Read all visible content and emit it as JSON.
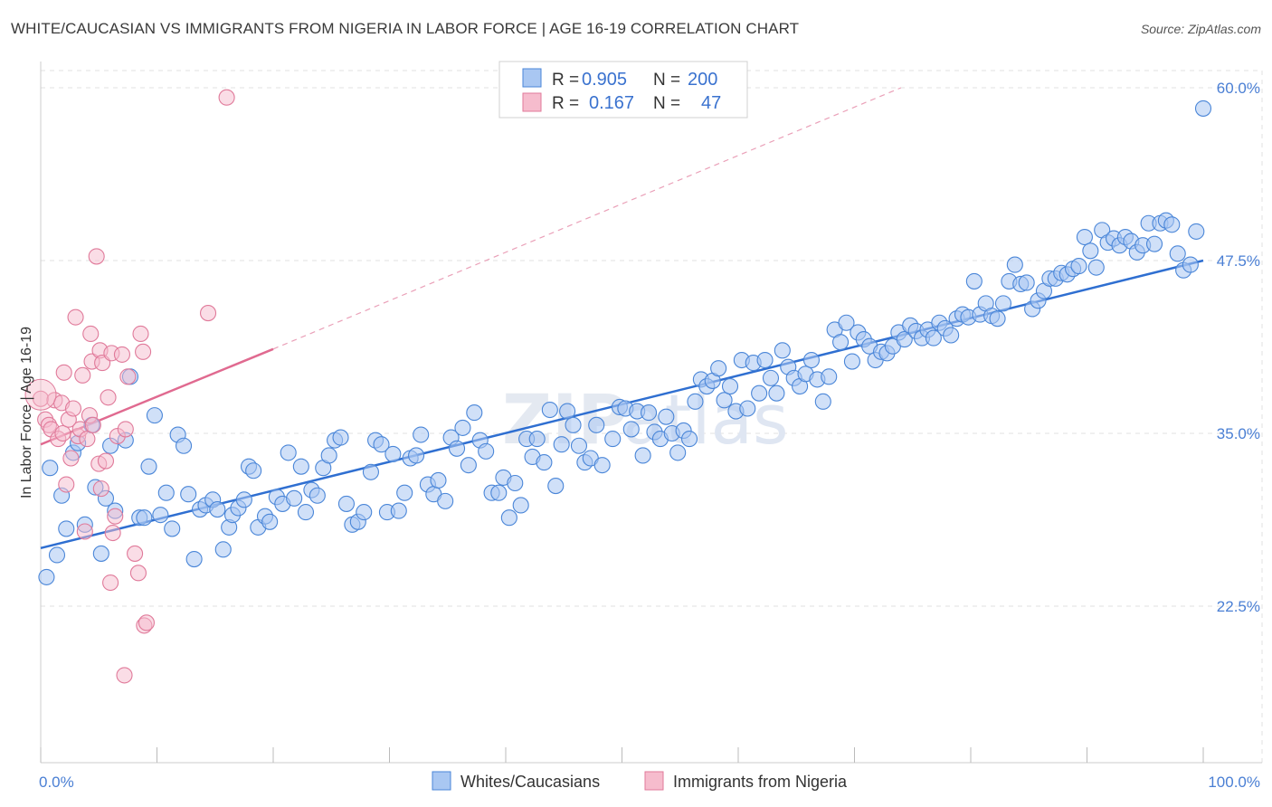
{
  "title": "WHITE/CAUCASIAN VS IMMIGRANTS FROM NIGERIA IN LABOR FORCE | AGE 16-19 CORRELATION CHART",
  "source": "Source: ZipAtlas.com",
  "watermark": {
    "zip": "ZIP",
    "atlas": "atlas"
  },
  "chart_data": {
    "type": "scatter",
    "title": "WHITE/CAUCASIAN VS IMMIGRANTS FROM NIGERIA IN LABOR FORCE | AGE 16-19 CORRELATION CHART",
    "xlabel": "",
    "ylabel": "In Labor Force | Age 16-19",
    "xlim": [
      0,
      100
    ],
    "ylim": [
      10,
      62
    ],
    "x_tick_labels": [
      "0.0%",
      "100.0%"
    ],
    "y_ticks": [
      22.5,
      35.0,
      47.5,
      60.0
    ],
    "y_tick_labels": [
      "22.5%",
      "35.0%",
      "47.5%",
      "60.0%"
    ],
    "grid": true,
    "legend_position": "top-center",
    "legend": [
      {
        "name": "Whites/Caucasians",
        "r_label": "R =",
        "r": "0.905",
        "n_label": "N =",
        "n": "200",
        "color": "#a9c7f2",
        "stroke": "#4a86d8"
      },
      {
        "name": "Immigrants from Nigeria",
        "r_label": "R =",
        "r": "0.167",
        "n_label": "N =",
        "n": "47",
        "color": "#f6bccd",
        "stroke": "#e07a9a"
      }
    ],
    "series": [
      {
        "name": "Whites/Caucasians",
        "color": "#a9c7f2",
        "stroke": "#4a86d8",
        "trend": {
          "x": [
            0,
            100
          ],
          "y": [
            26.7,
            47.5
          ],
          "color": "#2f6fd1"
        },
        "points": [
          [
            0.5,
            24.6
          ],
          [
            0.8,
            32.5
          ],
          [
            1.4,
            26.2
          ],
          [
            1.8,
            30.5
          ],
          [
            2.2,
            28.1
          ],
          [
            2.8,
            33.6
          ],
          [
            3.2,
            34.3
          ],
          [
            3.8,
            28.4
          ],
          [
            4.4,
            35.6
          ],
          [
            4.7,
            31.1
          ],
          [
            5.2,
            26.3
          ],
          [
            5.6,
            30.3
          ],
          [
            6.0,
            34.1
          ],
          [
            6.4,
            29.4
          ],
          [
            7.3,
            34.5
          ],
          [
            7.7,
            39.1
          ],
          [
            8.5,
            28.9
          ],
          [
            8.9,
            28.9
          ],
          [
            9.3,
            32.6
          ],
          [
            9.8,
            36.3
          ],
          [
            10.3,
            29.1
          ],
          [
            10.8,
            30.7
          ],
          [
            11.3,
            28.1
          ],
          [
            11.8,
            34.9
          ],
          [
            12.3,
            34.1
          ],
          [
            12.7,
            30.6
          ],
          [
            13.2,
            25.9
          ],
          [
            13.7,
            29.5
          ],
          [
            14.2,
            29.8
          ],
          [
            14.8,
            30.2
          ],
          [
            15.2,
            29.5
          ],
          [
            15.7,
            26.6
          ],
          [
            16.2,
            28.2
          ],
          [
            16.5,
            29.1
          ],
          [
            17.0,
            29.6
          ],
          [
            17.5,
            30.2
          ],
          [
            17.9,
            32.6
          ],
          [
            18.3,
            32.3
          ],
          [
            18.7,
            28.2
          ],
          [
            19.3,
            29.0
          ],
          [
            19.7,
            28.6
          ],
          [
            20.3,
            30.4
          ],
          [
            20.8,
            29.9
          ],
          [
            21.3,
            33.6
          ],
          [
            21.8,
            30.3
          ],
          [
            22.4,
            32.6
          ],
          [
            22.8,
            29.3
          ],
          [
            23.3,
            30.9
          ],
          [
            23.8,
            30.5
          ],
          [
            24.3,
            32.5
          ],
          [
            24.8,
            33.4
          ],
          [
            25.3,
            34.5
          ],
          [
            25.8,
            34.7
          ],
          [
            26.3,
            29.9
          ],
          [
            26.8,
            28.4
          ],
          [
            27.3,
            28.6
          ],
          [
            27.8,
            29.3
          ],
          [
            28.4,
            32.2
          ],
          [
            28.8,
            34.5
          ],
          [
            29.3,
            34.2
          ],
          [
            29.8,
            29.3
          ],
          [
            30.3,
            33.5
          ],
          [
            30.8,
            29.4
          ],
          [
            31.3,
            30.7
          ],
          [
            31.8,
            33.2
          ],
          [
            32.3,
            33.4
          ],
          [
            32.7,
            34.9
          ],
          [
            33.3,
            31.3
          ],
          [
            33.8,
            30.6
          ],
          [
            34.2,
            31.6
          ],
          [
            34.8,
            30.1
          ],
          [
            35.3,
            34.7
          ],
          [
            35.8,
            33.9
          ],
          [
            36.3,
            35.4
          ],
          [
            36.8,
            32.7
          ],
          [
            37.3,
            36.5
          ],
          [
            37.8,
            34.5
          ],
          [
            38.3,
            33.7
          ],
          [
            38.8,
            30.7
          ],
          [
            39.4,
            30.7
          ],
          [
            39.8,
            31.8
          ],
          [
            40.3,
            28.9
          ],
          [
            40.8,
            31.4
          ],
          [
            41.3,
            29.8
          ],
          [
            41.8,
            34.6
          ],
          [
            42.3,
            33.3
          ],
          [
            42.7,
            34.6
          ],
          [
            43.3,
            32.9
          ],
          [
            43.8,
            36.7
          ],
          [
            44.3,
            31.2
          ],
          [
            44.8,
            34.2
          ],
          [
            45.3,
            36.6
          ],
          [
            45.8,
            35.6
          ],
          [
            46.3,
            34.1
          ],
          [
            46.8,
            32.9
          ],
          [
            47.3,
            33.2
          ],
          [
            47.8,
            35.6
          ],
          [
            48.3,
            32.7
          ],
          [
            49.2,
            34.6
          ],
          [
            49.8,
            36.9
          ],
          [
            50.3,
            36.8
          ],
          [
            50.8,
            35.3
          ],
          [
            51.3,
            36.6
          ],
          [
            51.8,
            33.4
          ],
          [
            52.3,
            36.5
          ],
          [
            52.8,
            35.1
          ],
          [
            53.3,
            34.6
          ],
          [
            53.8,
            36.2
          ],
          [
            54.3,
            35.0
          ],
          [
            54.8,
            33.6
          ],
          [
            55.3,
            35.2
          ],
          [
            55.8,
            34.6
          ],
          [
            56.3,
            37.3
          ],
          [
            56.8,
            38.9
          ],
          [
            57.3,
            38.4
          ],
          [
            57.8,
            38.8
          ],
          [
            58.3,
            39.7
          ],
          [
            58.8,
            37.4
          ],
          [
            59.3,
            38.4
          ],
          [
            59.8,
            36.6
          ],
          [
            60.3,
            40.3
          ],
          [
            60.8,
            36.8
          ],
          [
            61.3,
            40.1
          ],
          [
            61.8,
            37.9
          ],
          [
            62.3,
            40.3
          ],
          [
            62.8,
            39.0
          ],
          [
            63.3,
            37.9
          ],
          [
            63.8,
            41.0
          ],
          [
            64.3,
            39.8
          ],
          [
            64.8,
            39.0
          ],
          [
            65.3,
            38.4
          ],
          [
            65.8,
            39.3
          ],
          [
            66.3,
            40.3
          ],
          [
            66.8,
            38.9
          ],
          [
            67.3,
            37.3
          ],
          [
            67.8,
            39.1
          ],
          [
            68.3,
            42.5
          ],
          [
            68.8,
            41.6
          ],
          [
            69.3,
            43.0
          ],
          [
            69.8,
            40.2
          ],
          [
            70.3,
            42.3
          ],
          [
            70.8,
            41.8
          ],
          [
            71.3,
            41.3
          ],
          [
            71.8,
            40.3
          ],
          [
            72.3,
            40.9
          ],
          [
            72.8,
            40.8
          ],
          [
            73.3,
            41.3
          ],
          [
            73.8,
            42.3
          ],
          [
            74.3,
            41.8
          ],
          [
            74.8,
            42.8
          ],
          [
            75.3,
            42.4
          ],
          [
            75.8,
            41.9
          ],
          [
            76.3,
            42.5
          ],
          [
            76.8,
            41.9
          ],
          [
            77.3,
            43.0
          ],
          [
            77.8,
            42.6
          ],
          [
            78.3,
            42.1
          ],
          [
            78.8,
            43.3
          ],
          [
            79.3,
            43.6
          ],
          [
            79.8,
            43.4
          ],
          [
            80.3,
            46.0
          ],
          [
            80.8,
            43.6
          ],
          [
            81.3,
            44.4
          ],
          [
            81.8,
            43.5
          ],
          [
            82.3,
            43.3
          ],
          [
            82.8,
            44.4
          ],
          [
            83.3,
            46.0
          ],
          [
            83.8,
            47.2
          ],
          [
            84.3,
            45.8
          ],
          [
            84.8,
            45.9
          ],
          [
            85.3,
            44.0
          ],
          [
            85.8,
            44.6
          ],
          [
            86.3,
            45.3
          ],
          [
            86.8,
            46.2
          ],
          [
            87.3,
            46.2
          ],
          [
            87.8,
            46.6
          ],
          [
            88.3,
            46.5
          ],
          [
            88.8,
            46.9
          ],
          [
            89.3,
            47.1
          ],
          [
            89.8,
            49.2
          ],
          [
            90.3,
            48.2
          ],
          [
            90.8,
            47.0
          ],
          [
            91.3,
            49.7
          ],
          [
            91.8,
            48.8
          ],
          [
            92.3,
            49.1
          ],
          [
            92.8,
            48.6
          ],
          [
            93.3,
            49.2
          ],
          [
            93.8,
            48.9
          ],
          [
            94.3,
            48.1
          ],
          [
            94.8,
            48.6
          ],
          [
            95.3,
            50.2
          ],
          [
            95.8,
            48.7
          ],
          [
            96.3,
            50.2
          ],
          [
            96.8,
            50.4
          ],
          [
            97.3,
            50.1
          ],
          [
            97.8,
            48.0
          ],
          [
            98.3,
            46.8
          ],
          [
            98.9,
            47.2
          ],
          [
            99.4,
            49.6
          ],
          [
            100.0,
            58.5
          ]
        ]
      },
      {
        "name": "Immigrants from Nigeria",
        "color": "#f6bccd",
        "stroke": "#e07a9a",
        "trend": {
          "x": [
            0,
            20
          ],
          "y": [
            34.2,
            41.1
          ],
          "color": "#e06a90",
          "dashed_extension_to": [
            74,
            60.0
          ]
        },
        "points": [
          [
            0.0,
            37.5
          ],
          [
            0.4,
            36.0
          ],
          [
            0.7,
            35.6
          ],
          [
            0.9,
            35.3
          ],
          [
            1.2,
            37.4
          ],
          [
            1.5,
            34.6
          ],
          [
            1.8,
            37.2
          ],
          [
            1.9,
            35.0
          ],
          [
            2.0,
            39.4
          ],
          [
            2.2,
            31.3
          ],
          [
            2.4,
            36.0
          ],
          [
            2.6,
            33.2
          ],
          [
            2.8,
            36.8
          ],
          [
            3.0,
            43.4
          ],
          [
            3.2,
            34.8
          ],
          [
            3.4,
            35.3
          ],
          [
            3.6,
            39.2
          ],
          [
            3.8,
            27.9
          ],
          [
            4.0,
            34.6
          ],
          [
            4.2,
            36.3
          ],
          [
            4.3,
            42.2
          ],
          [
            4.4,
            40.2
          ],
          [
            4.5,
            35.6
          ],
          [
            4.8,
            47.8
          ],
          [
            5.0,
            32.8
          ],
          [
            5.1,
            41.0
          ],
          [
            5.2,
            31.0
          ],
          [
            5.3,
            40.1
          ],
          [
            5.6,
            33.0
          ],
          [
            5.8,
            37.6
          ],
          [
            6.0,
            24.2
          ],
          [
            6.1,
            40.8
          ],
          [
            6.2,
            27.8
          ],
          [
            6.4,
            29.0
          ],
          [
            6.6,
            34.8
          ],
          [
            7.0,
            40.7
          ],
          [
            7.3,
            35.3
          ],
          [
            7.5,
            39.1
          ],
          [
            8.1,
            26.3
          ],
          [
            8.4,
            24.9
          ],
          [
            8.6,
            42.2
          ],
          [
            8.8,
            40.9
          ],
          [
            8.9,
            21.1
          ],
          [
            9.1,
            21.3
          ],
          [
            7.2,
            17.5
          ],
          [
            14.4,
            43.7
          ],
          [
            16.0,
            59.3
          ]
        ]
      }
    ]
  }
}
